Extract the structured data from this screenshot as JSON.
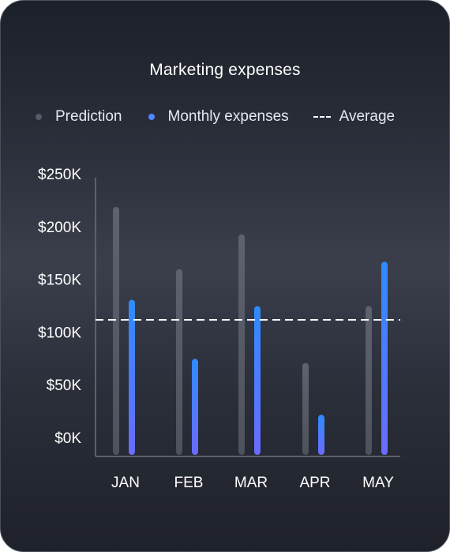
{
  "chart_data": {
    "type": "bar",
    "title": "Marketing expenses",
    "categories": [
      "JAN",
      "FEB",
      "MAR",
      "APR",
      "MAY"
    ],
    "series": [
      {
        "name": "Prediction",
        "values": [
          235000,
          176000,
          209000,
          87000,
          141000
        ],
        "color": "#565b67"
      },
      {
        "name": "Monthly expenses",
        "values": [
          147000,
          91000,
          141000,
          38000,
          183000
        ],
        "color": "#4f86ff"
      }
    ],
    "average": {
      "name": "Average",
      "value": 128000,
      "color": "#ffffff"
    },
    "yticks": [
      "$0K",
      "$50K",
      "$100K",
      "$150K",
      "$200K",
      "$250K"
    ],
    "ytick_values": [
      0,
      50000,
      100000,
      150000,
      200000,
      250000
    ],
    "ylim": [
      0,
      250000
    ],
    "xlabel": "",
    "ylabel": "",
    "grid": false,
    "legend_position": "top"
  }
}
